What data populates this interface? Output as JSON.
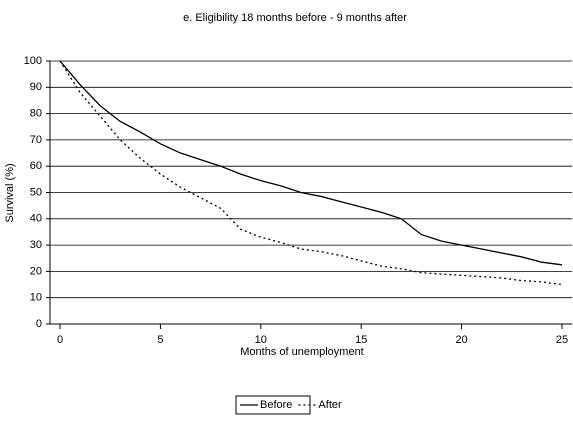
{
  "chart_data": {
    "type": "line",
    "title": "e. Eligibility 18 months before - 9 months after",
    "x_label": "Months of unemployment",
    "y_label": "Survival (%)",
    "x": [
      0,
      1,
      2,
      3,
      4,
      5,
      6,
      7,
      8,
      9,
      10,
      11,
      12,
      13,
      14,
      15,
      16,
      17,
      18,
      19,
      20,
      21,
      22,
      23,
      24,
      25
    ],
    "series": [
      {
        "name": "Before",
        "color": "#000000",
        "dash": "solid",
        "values": [
          100,
          91,
          83,
          77,
          73,
          68.5,
          65,
          62.5,
          60,
          57,
          54.5,
          52.5,
          50,
          48.5,
          46.5,
          44.5,
          42.5,
          40,
          34,
          31.5,
          30,
          28.5,
          27,
          25.5,
          23.5,
          22.5
        ]
      },
      {
        "name": "After",
        "color": "#000000",
        "dash": "dotted",
        "values": [
          100,
          88,
          79,
          70,
          63,
          57,
          52,
          48,
          44,
          36,
          33,
          31,
          28.5,
          27.5,
          26,
          24,
          22,
          21,
          19.5,
          19,
          18.5,
          18,
          17.5,
          16.5,
          16,
          15
        ]
      }
    ],
    "xlim": [
      -0.5,
      25.5
    ],
    "xticks": [
      0,
      5,
      10,
      15,
      20,
      25
    ],
    "ylim": [
      0,
      100
    ],
    "yticks": [
      0,
      10,
      20,
      30,
      40,
      50,
      60,
      70,
      80,
      90,
      100
    ],
    "grid": true,
    "legend": "bottom"
  }
}
